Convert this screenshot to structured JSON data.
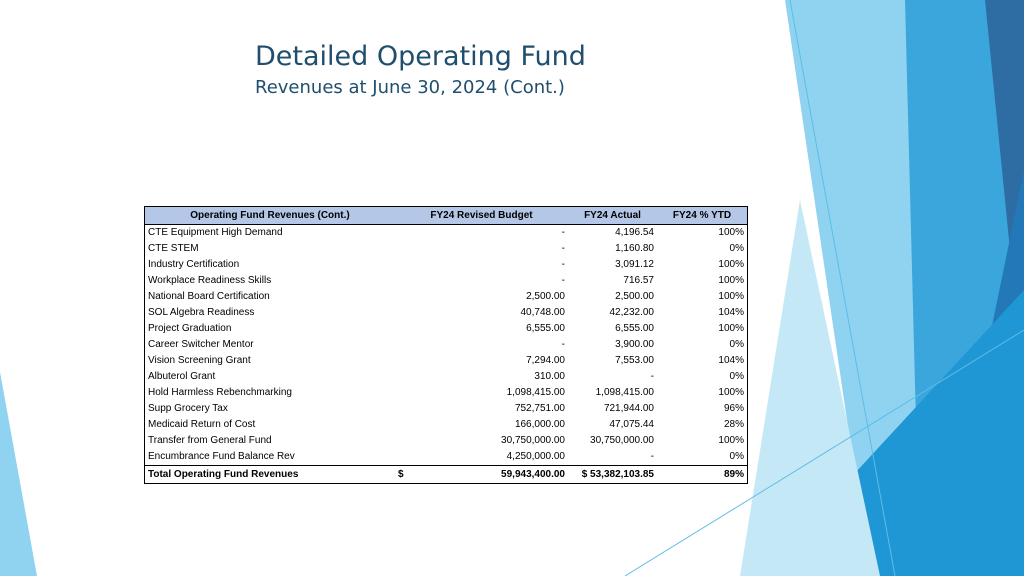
{
  "slide": {
    "title": "Detailed Operating Fund",
    "subtitle": "Revenues at June 30, 2024 (Cont.)"
  },
  "table": {
    "headers": [
      "Operating Fund Revenues (Cont.)",
      "FY24 Revised Budget",
      "FY24 Actual",
      "FY24 % YTD"
    ],
    "rows": [
      [
        "CTE Equipment High Demand",
        "-",
        "4,196.54",
        "100%"
      ],
      [
        "CTE STEM",
        "-",
        "1,160.80",
        "0%"
      ],
      [
        "Industry Certification",
        "-",
        "3,091.12",
        "100%"
      ],
      [
        "Workplace Readiness Skills",
        "-",
        "716.57",
        "100%"
      ],
      [
        "National Board Certification",
        "2,500.00",
        "2,500.00",
        "100%"
      ],
      [
        "SOL Algebra Readiness",
        "40,748.00",
        "42,232.00",
        "104%"
      ],
      [
        "Project Graduation",
        "6,555.00",
        "6,555.00",
        "100%"
      ],
      [
        "Career Switcher Mentor",
        "-",
        "3,900.00",
        "0%"
      ],
      [
        "Vision Screening Grant",
        "7,294.00",
        "7,553.00",
        "104%"
      ],
      [
        "Albuterol Grant",
        "310.00",
        "-",
        "0%"
      ],
      [
        "Hold Harmless Rebenchmarking",
        "1,098,415.00",
        "1,098,415.00",
        "100%"
      ],
      [
        "Supp Grocery Tax",
        "752,751.00",
        "721,944.00",
        "96%"
      ],
      [
        "Medicaid Return of Cost",
        "166,000.00",
        "47,075.44",
        "28%"
      ],
      [
        "Transfer from General Fund",
        "30,750,000.00",
        "30,750,000.00",
        "100%"
      ],
      [
        "Encumbrance Fund Balance Rev",
        "4,250,000.00",
        "-",
        "0%"
      ]
    ],
    "total": {
      "label": "Total Operating Fund Revenues",
      "budget_currency": "$",
      "budget": "59,943,400.00",
      "actual": "$ 53,382,103.85",
      "ytd": "89%"
    }
  },
  "colors": {
    "title": "#1f4e6e",
    "header_fill": "#b4c7e7",
    "accent_dark": "#2e6da4",
    "accent_mid": "#3aa6dc",
    "accent_light": "#8fd3f0"
  }
}
